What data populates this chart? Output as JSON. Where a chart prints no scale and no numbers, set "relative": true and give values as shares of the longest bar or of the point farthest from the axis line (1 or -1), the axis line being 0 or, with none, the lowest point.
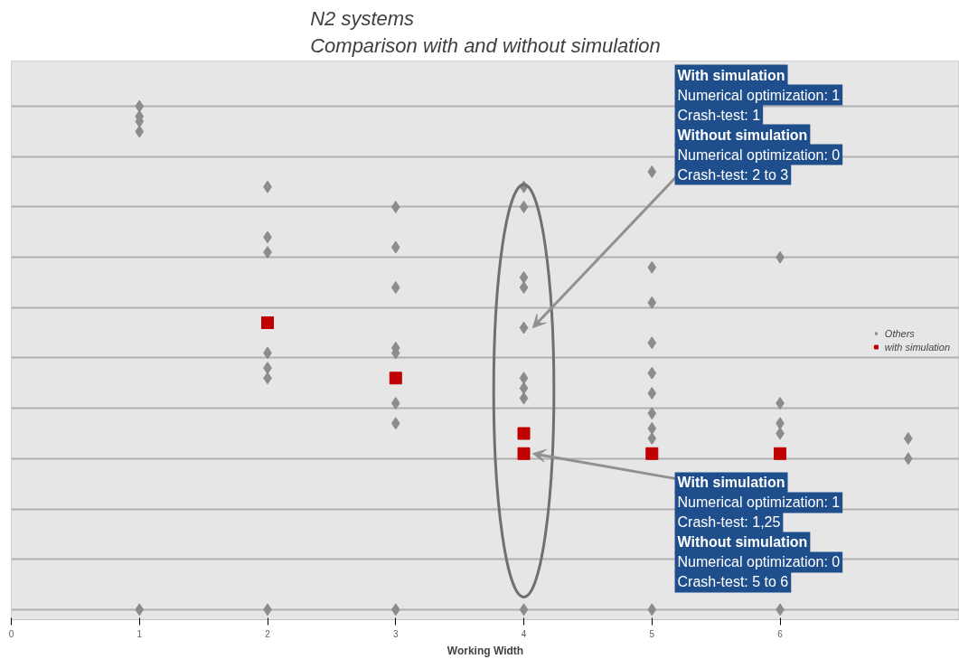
{
  "chart_data": {
    "type": "scatter",
    "title": "N2 systems\nComparison with and without simulation",
    "xlabel": "Working Width",
    "relative": true,
    "xlim": [
      0,
      7.4
    ],
    "xticks": [
      0,
      1,
      2,
      3,
      4,
      5,
      6
    ],
    "grid": "y",
    "legend": "right",
    "series": [
      {
        "name": "Others",
        "color": "#8c8c8c",
        "marker": "diamond",
        "x": [
          1,
          1,
          1,
          1,
          1,
          2,
          2,
          2,
          2,
          2,
          2,
          2,
          3,
          3,
          3,
          3,
          3,
          3,
          3,
          3,
          4,
          4,
          4,
          4,
          4,
          4,
          4,
          4,
          4,
          5,
          5,
          5,
          5,
          5,
          5,
          5,
          5,
          5,
          5,
          6,
          6,
          6,
          6,
          6,
          7,
          7
        ],
        "values": [
          1.0,
          0.98,
          0.97,
          0.95,
          0,
          0.84,
          0.74,
          0.71,
          0.51,
          0.48,
          0.46,
          0,
          0.8,
          0.72,
          0.64,
          0.52,
          0.51,
          0.41,
          0.37,
          0,
          0.84,
          0.8,
          0.66,
          0.64,
          0.56,
          0.46,
          0.44,
          0.42,
          0,
          0.87,
          0.68,
          0.61,
          0.53,
          0.47,
          0.43,
          0.39,
          0.36,
          0.34,
          0,
          0.7,
          0.41,
          0.37,
          0.35,
          0,
          0.34,
          0.3
        ]
      },
      {
        "name": "with simulation",
        "color": "#c00000",
        "marker": "square",
        "x": [
          2,
          3,
          4,
          4,
          5,
          6
        ],
        "values": [
          0.57,
          0.46,
          0.35,
          0.31,
          0.31,
          0.31
        ]
      }
    ],
    "annotations": [
      "With simulation\nNumerical optimization: 1\nCrash-test: 1\nWithout simulation\nNumerical optimization: 0\nCrash-test: 2 to 3",
      "With simulation\nNumerical optimization: 1\nCrash-test: 1,25\nWithout simulation\nNumerical optimization: 0\nCrash-test: 5 to 6"
    ]
  }
}
